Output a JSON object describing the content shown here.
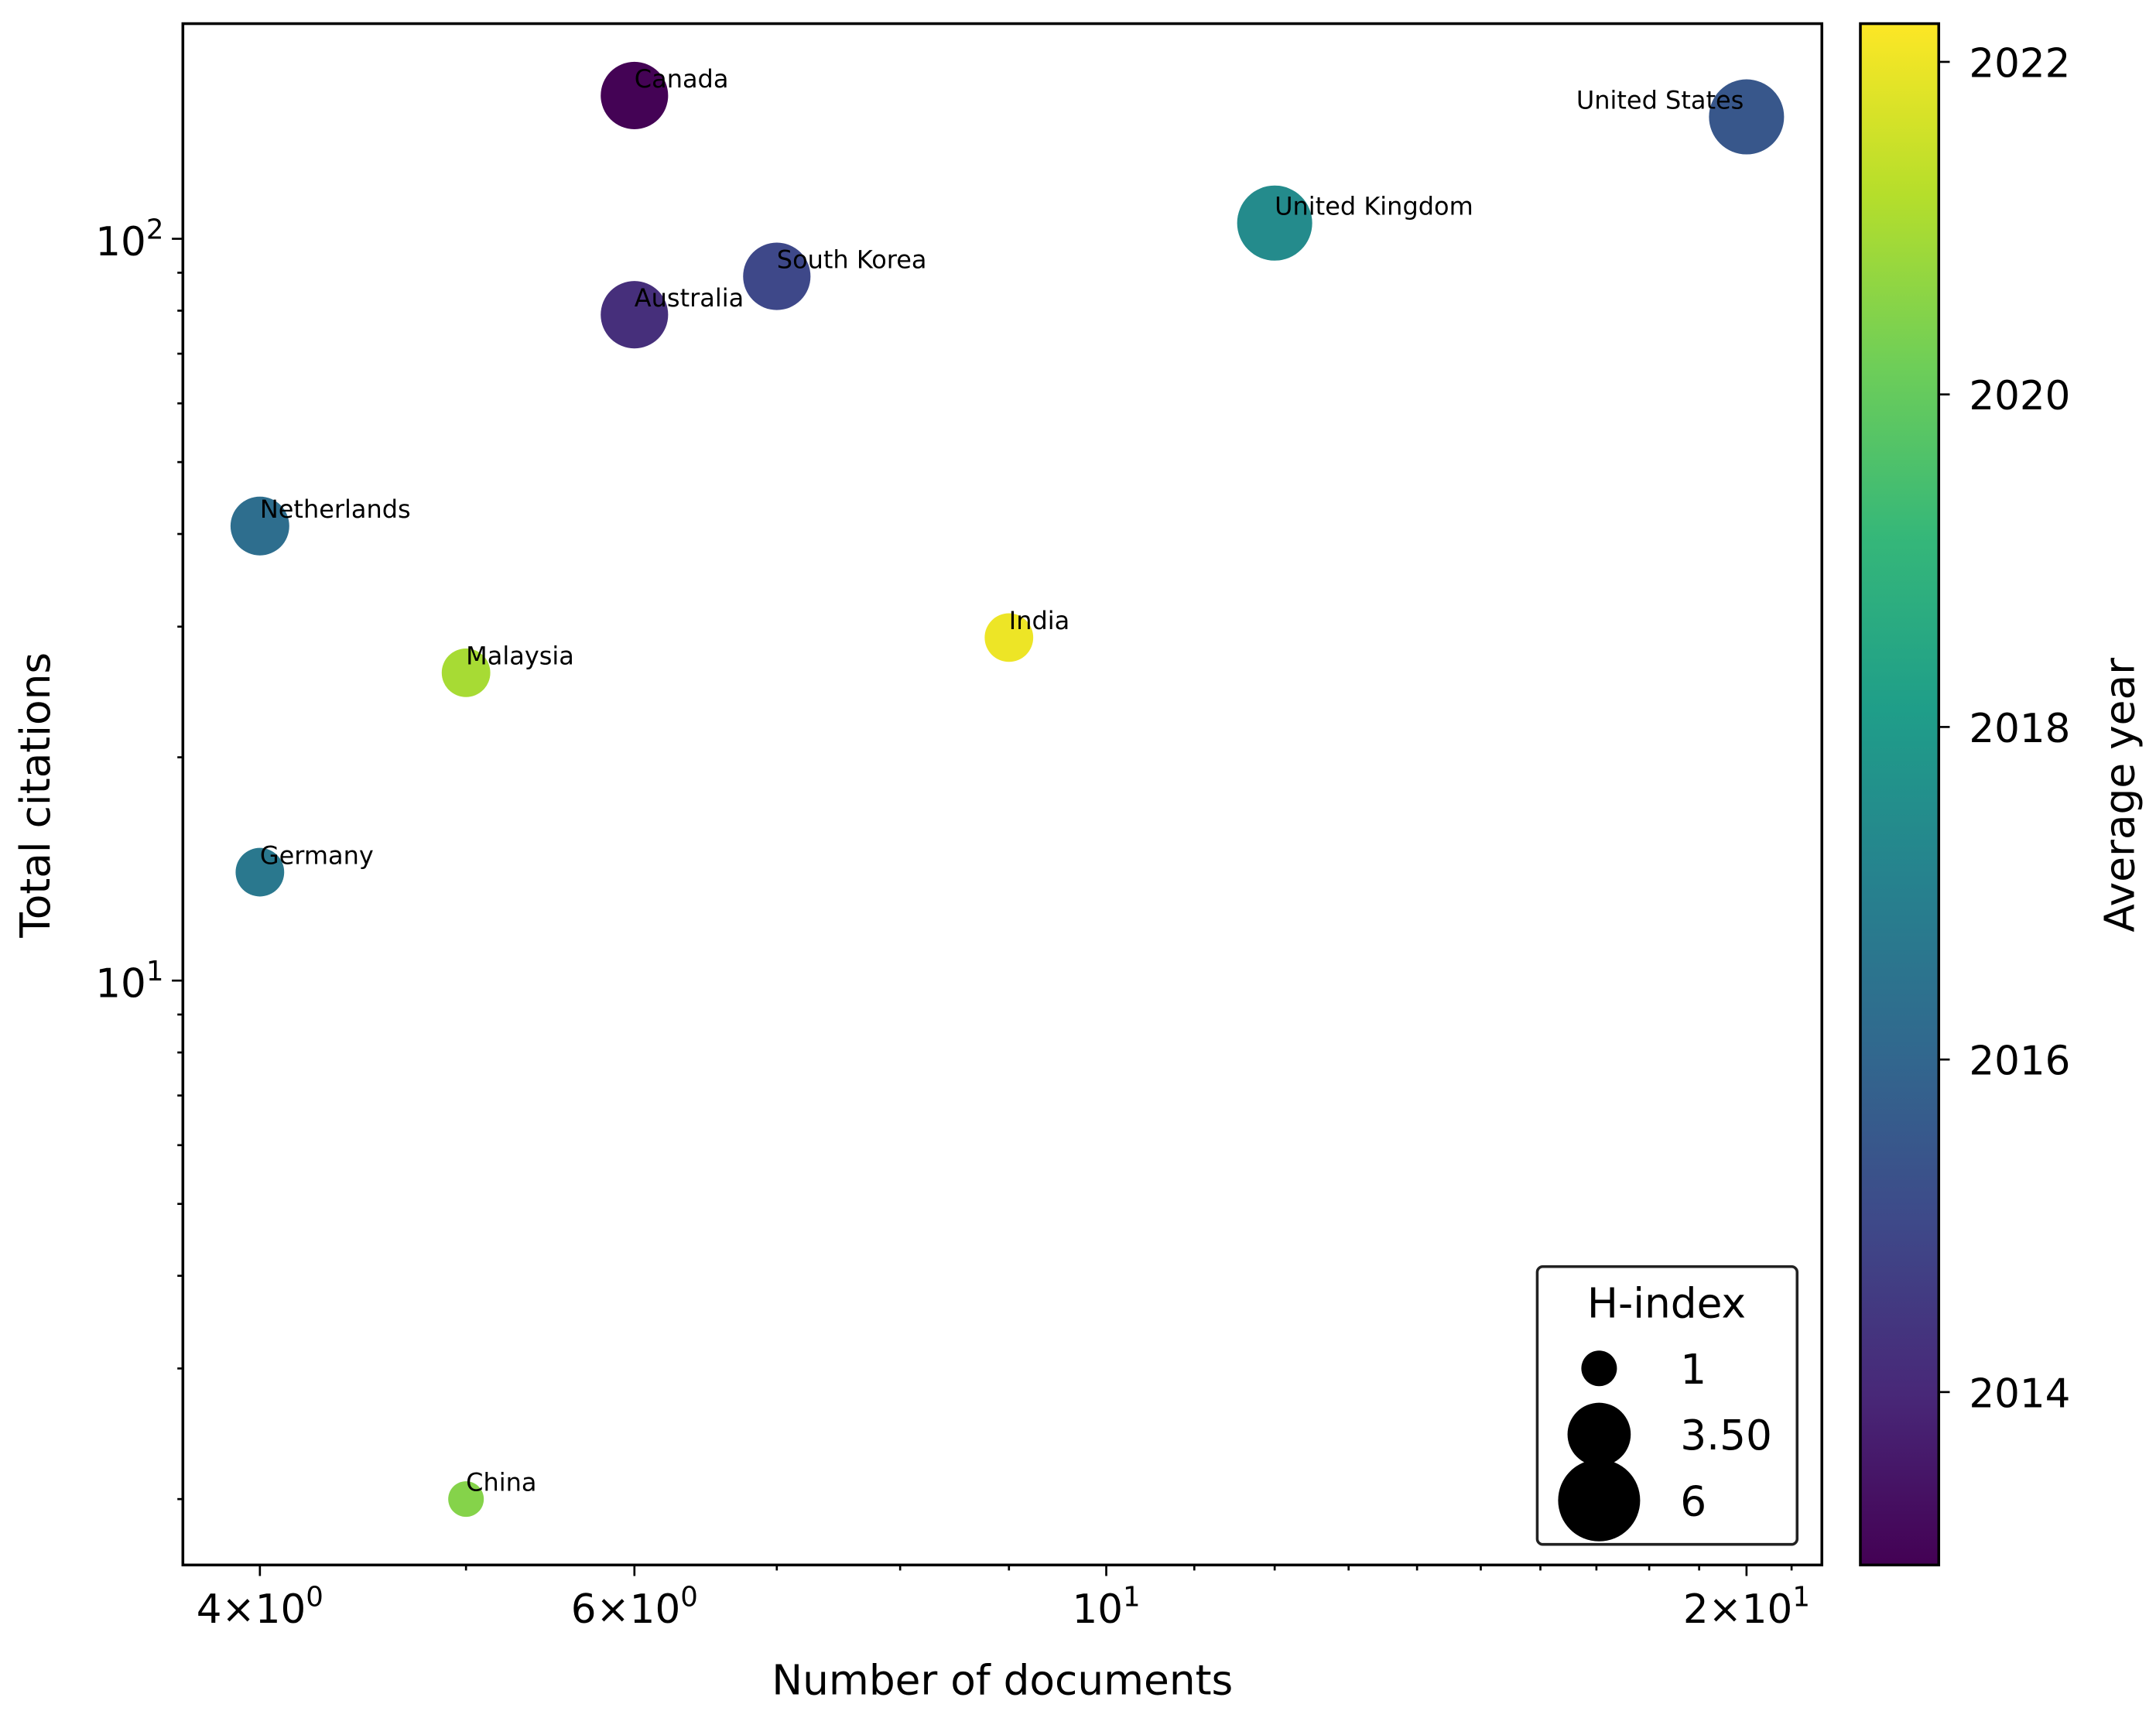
{
  "chart_data": {
    "type": "scatter",
    "title": "",
    "xlabel": "Number of documents",
    "ylabel": "Total citations",
    "xscale": "log",
    "yscale": "log",
    "xlim": [
      3.68,
      21.7
    ],
    "ylim": [
      1.63,
      195
    ],
    "grid": false,
    "x_ticks": [
      {
        "value": 4,
        "base": "4×10",
        "exp": "0"
      },
      {
        "value": 6,
        "base": "6×10",
        "exp": "0"
      },
      {
        "value": 10,
        "base": "10",
        "exp": "1"
      },
      {
        "value": 20,
        "base": "2×10",
        "exp": "1"
      }
    ],
    "y_ticks": [
      {
        "value": 10,
        "base": "10",
        "exp": "1"
      },
      {
        "value": 100,
        "base": "10",
        "exp": "2"
      }
    ],
    "points": [
      {
        "label": "Canada",
        "documents": 6,
        "citations": 156,
        "h_index": 4,
        "avg_year": 2013.0
      },
      {
        "label": "United States",
        "documents": 20,
        "citations": 146,
        "h_index": 5,
        "avg_year": 2015.5
      },
      {
        "label": "United Kingdom",
        "documents": 12,
        "citations": 105,
        "h_index": 5,
        "avg_year": 2017.4
      },
      {
        "label": "South Korea",
        "documents": 7,
        "citations": 89,
        "h_index": 4,
        "avg_year": 2015.0
      },
      {
        "label": "Australia",
        "documents": 6,
        "citations": 79,
        "h_index": 4,
        "avg_year": 2014.2
      },
      {
        "label": "Netherlands",
        "documents": 4,
        "citations": 41,
        "h_index": 3,
        "avg_year": 2016.3
      },
      {
        "label": "India",
        "documents": 9,
        "citations": 29,
        "h_index": 2,
        "avg_year": 2022.0
      },
      {
        "label": "Malaysia",
        "documents": 5,
        "citations": 26,
        "h_index": 2,
        "avg_year": 2021.0
      },
      {
        "label": "Germany",
        "documents": 4,
        "citations": 14,
        "h_index": 2,
        "avg_year": 2016.7
      },
      {
        "label": "China",
        "documents": 5,
        "citations": 2,
        "h_index": 1,
        "avg_year": 2020.5
      }
    ],
    "colorbar": {
      "label": "Average year",
      "range": [
        2012.96,
        2022.23
      ],
      "ticks": [
        "2014",
        "2016",
        "2018",
        "2020",
        "2022"
      ],
      "colormap": "viridis"
    },
    "legend": {
      "title": "H-index",
      "placement": "lower-right",
      "entries": [
        {
          "label": "1",
          "value": 1
        },
        {
          "label": "3.50",
          "value": 3.5
        },
        {
          "label": "6",
          "value": 6
        }
      ]
    }
  }
}
